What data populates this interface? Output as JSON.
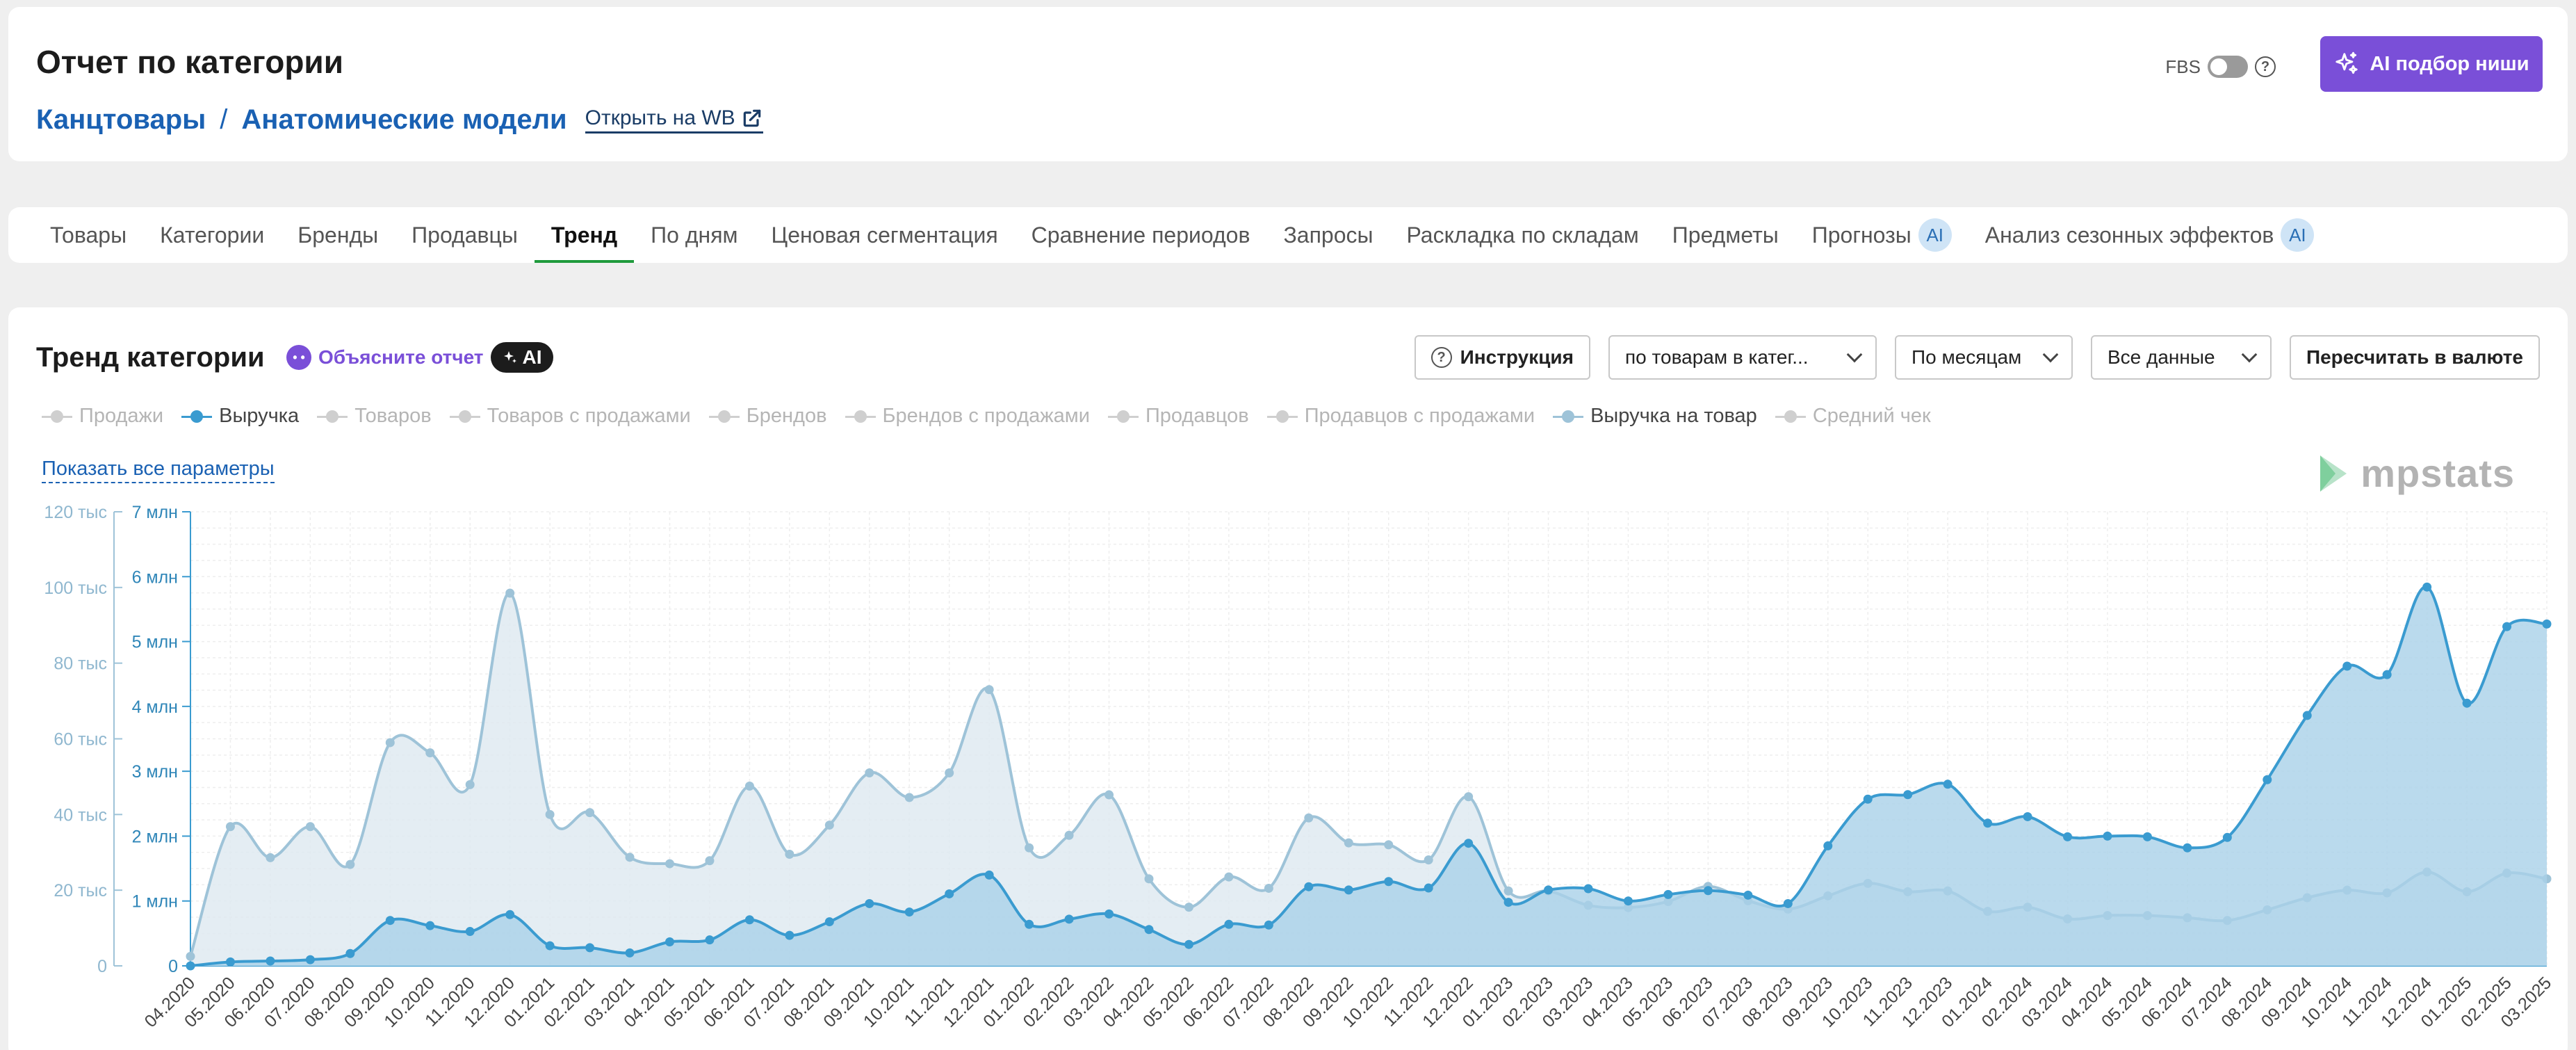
{
  "header": {
    "title": "Отчет по категории",
    "breadcrumb": [
      "Канцтовары",
      "Анатомические модели"
    ],
    "open_wb": "Открыть на WB",
    "fbs_label": "FBS",
    "help_glyph": "?",
    "ai_niche_button": "AI подбор ниши"
  },
  "tabs": [
    {
      "label": "Товары",
      "ai": false
    },
    {
      "label": "Категории",
      "ai": false
    },
    {
      "label": "Бренды",
      "ai": false
    },
    {
      "label": "Продавцы",
      "ai": false
    },
    {
      "label": "Тренд",
      "ai": false,
      "active": true
    },
    {
      "label": "По дням",
      "ai": false
    },
    {
      "label": "Ценовая сегментация",
      "ai": false
    },
    {
      "label": "Сравнение периодов",
      "ai": false
    },
    {
      "label": "Запросы",
      "ai": false
    },
    {
      "label": "Раскладка по складам",
      "ai": false
    },
    {
      "label": "Предметы",
      "ai": false
    },
    {
      "label": "Прогнозы",
      "ai": true
    },
    {
      "label": "Анализ сезонных эффектов",
      "ai": true
    }
  ],
  "ai_badge": "AI",
  "chart_section": {
    "title": "Тренд категории",
    "explain": "Объясните отчет",
    "ai_label": "AI",
    "instruction_button": "Инструкция",
    "select_scope": "по товарам в катег...",
    "select_period": "По месяцам",
    "select_data": "Все данные",
    "recalc_button": "Пересчитать в валюте",
    "show_all_params": "Показать все параметры",
    "logo_text": "mpstats"
  },
  "legend": [
    {
      "label": "Продажи",
      "on": false
    },
    {
      "label": "Выручка",
      "on": true,
      "color": "#3a9bd0"
    },
    {
      "label": "Товаров",
      "on": false
    },
    {
      "label": "Товаров с продажами",
      "on": false
    },
    {
      "label": "Брендов",
      "on": false
    },
    {
      "label": "Брендов с продажами",
      "on": false
    },
    {
      "label": "Продавцов",
      "on": false
    },
    {
      "label": "Продавцов с продажами",
      "on": false
    },
    {
      "label": "Выручка на товар",
      "on": true,
      "color": "#9ec3d8"
    },
    {
      "label": "Средний чек",
      "on": false
    }
  ],
  "chart_data": {
    "type": "area",
    "x": [
      "04.2020",
      "05.2020",
      "06.2020",
      "07.2020",
      "08.2020",
      "09.2020",
      "10.2020",
      "11.2020",
      "12.2020",
      "01.2021",
      "02.2021",
      "03.2021",
      "04.2021",
      "05.2021",
      "06.2021",
      "07.2021",
      "08.2021",
      "09.2021",
      "10.2021",
      "11.2021",
      "12.2021",
      "01.2022",
      "02.2022",
      "03.2022",
      "04.2022",
      "05.2022",
      "06.2022",
      "07.2022",
      "08.2022",
      "09.2022",
      "10.2022",
      "11.2022",
      "12.2022",
      "01.2023",
      "02.2023",
      "03.2023",
      "04.2023",
      "05.2023",
      "06.2023",
      "07.2023",
      "08.2023",
      "09.2023",
      "10.2023",
      "11.2023",
      "12.2023",
      "01.2024",
      "02.2024",
      "03.2024",
      "04.2024",
      "05.2024",
      "06.2024",
      "07.2024",
      "08.2024",
      "09.2024",
      "10.2024",
      "11.2024",
      "12.2024",
      "01.2025",
      "02.2025",
      "03.2025"
    ],
    "left_axis": {
      "ticks": [
        0,
        20000,
        40000,
        60000,
        80000,
        100000,
        120000
      ],
      "tick_labels": [
        "0",
        "20 тыс",
        "40 тыс",
        "60 тыс",
        "80 тыс",
        "100 тыс",
        "120 тыс"
      ],
      "ylim": [
        0,
        120000
      ]
    },
    "right_axis": {
      "ticks": [
        0,
        1000000,
        2000000,
        3000000,
        4000000,
        5000000,
        6000000,
        7000000
      ],
      "tick_labels": [
        "0",
        "1 млн",
        "2 млн",
        "3 млн",
        "4 млн",
        "5 млн",
        "6 млн",
        "7 млн"
      ],
      "ylim": [
        0,
        7000000
      ]
    },
    "series": [
      {
        "name": "Выручка на товар",
        "axis": "left",
        "color": "#9ec3d8",
        "fill": "#dde8f0",
        "values": [
          2500,
          36800,
          28600,
          36800,
          26800,
          59000,
          56300,
          47900,
          98500,
          40000,
          40500,
          28700,
          27000,
          27800,
          47500,
          29500,
          37200,
          51000,
          44500,
          51000,
          73000,
          31200,
          34500,
          45200,
          23000,
          15500,
          23500,
          20500,
          39100,
          32500,
          32000,
          28000,
          44700,
          19800,
          19800,
          16000,
          15400,
          17000,
          21000,
          17200,
          15000,
          18500,
          21800,
          19600,
          19800,
          14400,
          15500,
          12400,
          13300,
          13300,
          12700,
          12000,
          14800,
          18000,
          20000,
          19300,
          24800,
          19600,
          24500,
          23000
        ]
      },
      {
        "name": "Выручка",
        "axis": "right",
        "color": "#3a9bd0",
        "fill": "#a9d1e8",
        "values": [
          0,
          60000,
          75000,
          95000,
          190000,
          700000,
          620000,
          530000,
          790000,
          310000,
          280000,
          200000,
          370000,
          400000,
          710000,
          470000,
          680000,
          960000,
          830000,
          1110000,
          1400000,
          640000,
          720000,
          800000,
          560000,
          330000,
          640000,
          630000,
          1220000,
          1170000,
          1300000,
          1200000,
          1890000,
          980000,
          1170000,
          1190000,
          1000000,
          1100000,
          1160000,
          1090000,
          960000,
          1850000,
          2570000,
          2640000,
          2800000,
          2200000,
          2300000,
          1990000,
          2000000,
          1990000,
          1820000,
          1980000,
          2870000,
          3860000,
          4620000,
          4490000,
          5840000,
          4050000,
          5230000,
          5270000
        ]
      }
    ],
    "grid": true
  }
}
